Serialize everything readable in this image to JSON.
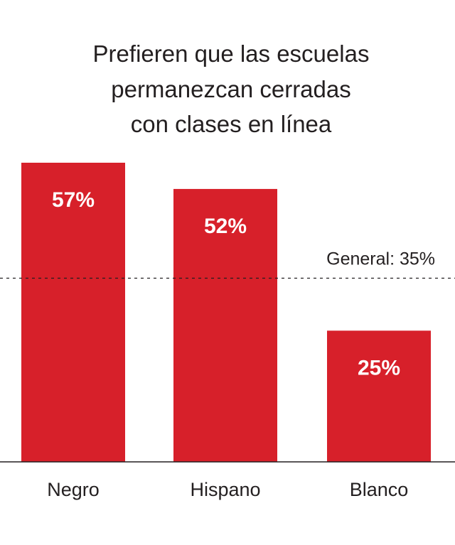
{
  "chart_data": {
    "type": "bar",
    "title_lines": [
      "Prefieren que las escuelas",
      "permanezcan cerradas",
      "con clases en línea"
    ],
    "categories": [
      "Negro",
      "Hispano",
      "Blanco"
    ],
    "values": [
      57,
      52,
      25
    ],
    "value_labels": [
      "57%",
      "52%",
      "25%"
    ],
    "reference_line": {
      "value": 35,
      "label": "General: 35%",
      "style": "dashed"
    },
    "ylim": [
      0,
      57
    ],
    "grid": false,
    "legend": "none",
    "bar_color": "#d7202a",
    "baseline_color": "#231f20",
    "text_color": "#231f20"
  }
}
